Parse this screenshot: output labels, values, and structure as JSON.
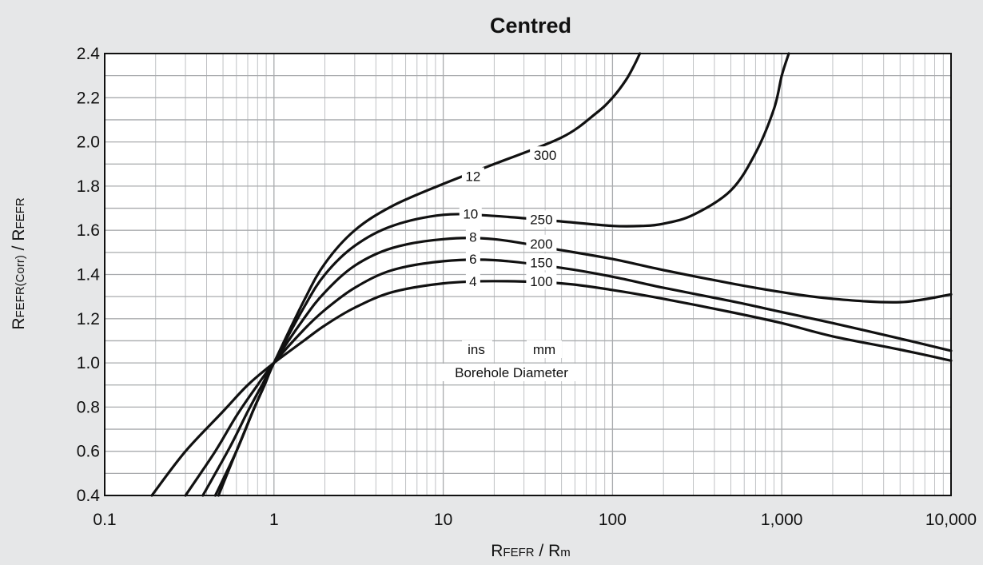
{
  "chart_data": {
    "type": "line",
    "title": "Centred",
    "xlabel": {
      "main": "R",
      "sub1": "FEFR",
      "mid": " / R",
      "sub2": "m"
    },
    "ylabel": {
      "main": "R",
      "sub1": "FEFR(Corr)",
      "mid": " / R",
      "sub2": "FEFR"
    },
    "x_scale": "log",
    "xlim": [
      0.1,
      10000
    ],
    "ylim": [
      0.4,
      2.4
    ],
    "x_ticks": [
      0.1,
      1,
      10,
      100,
      1000,
      10000
    ],
    "x_tick_labels": [
      "0.1",
      "1",
      "10",
      "100",
      "1,000",
      "10,000"
    ],
    "y_ticks": [
      0.4,
      0.6,
      0.8,
      1.0,
      1.2,
      1.4,
      1.6,
      1.8,
      2.0,
      2.2,
      2.4
    ],
    "y_tick_labels": [
      "0.4",
      "0.6",
      "0.8",
      "1.0",
      "1.2",
      "1.4",
      "1.6",
      "1.8",
      "2.0",
      "2.2",
      "2.4"
    ],
    "grid": true,
    "legend_note": {
      "ins": "ins",
      "mm": "mm",
      "caption": "Borehole Diameter"
    },
    "series": [
      {
        "name_ins": "4",
        "name_mm": "100",
        "x": [
          0.19,
          0.3,
          0.5,
          0.7,
          1,
          1.5,
          2,
          3,
          5,
          10,
          20,
          50,
          100,
          200,
          500,
          1000,
          2000,
          5000,
          10000
        ],
        "y": [
          0.4,
          0.6,
          0.78,
          0.9,
          1.0,
          1.1,
          1.17,
          1.25,
          1.32,
          1.36,
          1.37,
          1.36,
          1.33,
          1.29,
          1.23,
          1.18,
          1.12,
          1.06,
          1.01
        ]
      },
      {
        "name_ins": "6",
        "name_mm": "150",
        "x": [
          0.3,
          0.45,
          0.6,
          0.8,
          1,
          1.5,
          2,
          3,
          5,
          10,
          20,
          50,
          100,
          200,
          500,
          1000,
          2000,
          5000,
          10000
        ],
        "y": [
          0.4,
          0.6,
          0.76,
          0.9,
          1.0,
          1.15,
          1.24,
          1.34,
          1.42,
          1.46,
          1.465,
          1.43,
          1.39,
          1.34,
          1.28,
          1.23,
          1.18,
          1.11,
          1.055
        ]
      },
      {
        "name_ins": "8",
        "name_mm": "200",
        "x": [
          0.38,
          0.55,
          0.7,
          0.85,
          1,
          1.5,
          2,
          3,
          5,
          10,
          20,
          50,
          100,
          200,
          500,
          1000,
          2000,
          5000,
          10000
        ],
        "y": [
          0.4,
          0.62,
          0.78,
          0.9,
          1.0,
          1.2,
          1.32,
          1.44,
          1.52,
          1.56,
          1.56,
          1.51,
          1.47,
          1.42,
          1.36,
          1.32,
          1.29,
          1.275,
          1.31
        ]
      },
      {
        "name_ins": "10",
        "name_mm": "250",
        "x": [
          0.45,
          0.6,
          0.75,
          0.88,
          1,
          1.5,
          2,
          3,
          5,
          10,
          20,
          50,
          100,
          150,
          200,
          300,
          500,
          700,
          900,
          1000,
          1100
        ],
        "y": [
          0.4,
          0.6,
          0.78,
          0.9,
          1.0,
          1.25,
          1.4,
          1.53,
          1.62,
          1.67,
          1.665,
          1.64,
          1.62,
          1.62,
          1.63,
          1.67,
          1.78,
          1.95,
          2.15,
          2.3,
          2.4
        ]
      },
      {
        "name_ins": "12",
        "name_mm": "300",
        "x": [
          0.47,
          0.6,
          0.75,
          0.88,
          1,
          1.5,
          2,
          3,
          5,
          10,
          20,
          50,
          80,
          100,
          120,
          135,
          145
        ],
        "y": [
          0.4,
          0.6,
          0.78,
          0.9,
          1.0,
          1.28,
          1.45,
          1.6,
          1.71,
          1.81,
          1.9,
          2.02,
          2.13,
          2.2,
          2.28,
          2.35,
          2.4
        ]
      }
    ],
    "curve_labels": [
      {
        "text": "4",
        "x": 15,
        "y": 1.37
      },
      {
        "text": "100",
        "x": 38,
        "y": 1.37
      },
      {
        "text": "6",
        "x": 15,
        "y": 1.47
      },
      {
        "text": "150",
        "x": 38,
        "y": 1.455
      },
      {
        "text": "8",
        "x": 15,
        "y": 1.57
      },
      {
        "text": "200",
        "x": 38,
        "y": 1.54
      },
      {
        "text": "10",
        "x": 14.5,
        "y": 1.675
      },
      {
        "text": "250",
        "x": 38,
        "y": 1.65
      },
      {
        "text": "12",
        "x": 15,
        "y": 1.845
      },
      {
        "text": "300",
        "x": 40,
        "y": 1.94
      }
    ]
  }
}
